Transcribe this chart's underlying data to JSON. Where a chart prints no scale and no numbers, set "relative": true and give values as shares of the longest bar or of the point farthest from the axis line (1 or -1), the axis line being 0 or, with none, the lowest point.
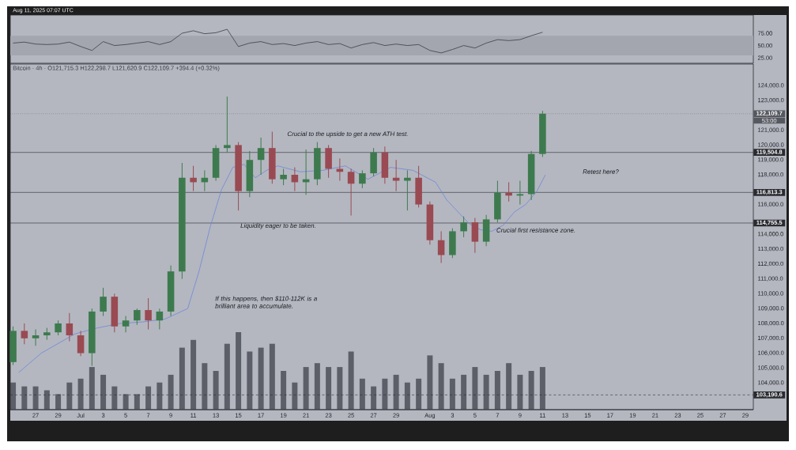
{
  "chart_data": [
    {
      "type": "line",
      "annotations": [
        "Aug 11, 2025 07:07 UTC"
      ],
      "x": [
        "2025-06-25",
        "2025-06-26",
        "2025-06-27",
        "2025-06-28",
        "2025-06-29",
        "2025-06-30",
        "2025-07-01",
        "2025-07-02",
        "2025-07-03",
        "2025-07-04",
        "2025-07-05",
        "2025-07-06",
        "2025-07-07",
        "2025-07-08",
        "2025-07-09",
        "2025-07-10",
        "2025-07-11",
        "2025-07-12",
        "2025-07-13",
        "2025-07-14",
        "2025-07-15",
        "2025-07-16",
        "2025-07-17",
        "2025-07-18",
        "2025-07-19",
        "2025-07-20",
        "2025-07-21",
        "2025-07-22",
        "2025-07-23",
        "2025-07-24",
        "2025-07-25",
        "2025-07-26",
        "2025-07-27",
        "2025-07-28",
        "2025-07-29",
        "2025-07-30",
        "2025-07-31",
        "2025-08-01",
        "2025-08-02",
        "2025-08-03",
        "2025-08-04",
        "2025-08-05",
        "2025-08-06",
        "2025-08-07",
        "2025-08-08",
        "2025-08-09",
        "2025-08-10",
        "2025-08-11"
      ],
      "series": [
        {
          "color": "#3a3d44",
          "values": [
            55,
            57,
            53,
            52,
            53,
            57,
            48,
            40,
            58,
            50,
            52,
            55,
            58,
            52,
            58,
            75,
            80,
            74,
            76,
            83,
            48,
            55,
            58,
            52,
            54,
            50,
            55,
            58,
            52,
            54,
            45,
            52,
            56,
            50,
            53,
            50,
            52,
            40,
            35,
            42,
            50,
            45,
            55,
            62,
            60,
            62,
            70,
            77
          ]
        }
      ],
      "xlim": [
        "2025-06-24T18:00",
        "2025-08-29T17:00"
      ],
      "ylim": [
        14,
        112
      ],
      "yticks": [
        {
          "value": 25,
          "label": "25.00"
        },
        {
          "value": 50,
          "label": "50.00"
        },
        {
          "value": 75,
          "label": "75.00"
        }
      ],
      "bands": [
        {
          "axis": "y",
          "from": 30,
          "to": 70,
          "color": "#a3a6af"
        }
      ],
      "tick_labels": "y"
    },
    {
      "type": "candlestick",
      "title": "Bitcoin · 4h · O121,715.3 H122,298.7 L121,620.9 C122,109.7 +394.4 (+0.32%)",
      "x": [
        "2025-06-25",
        "2025-06-26",
        "2025-06-27",
        "2025-06-28",
        "2025-06-29",
        "2025-06-30",
        "2025-07-01",
        "2025-07-02",
        "2025-07-03",
        "2025-07-04",
        "2025-07-05",
        "2025-07-06",
        "2025-07-07",
        "2025-07-08",
        "2025-07-09",
        "2025-07-10",
        "2025-07-11",
        "2025-07-12",
        "2025-07-13",
        "2025-07-14",
        "2025-07-15",
        "2025-07-16",
        "2025-07-17",
        "2025-07-18",
        "2025-07-19",
        "2025-07-20",
        "2025-07-21",
        "2025-07-22",
        "2025-07-23",
        "2025-07-24",
        "2025-07-25",
        "2025-07-26",
        "2025-07-27",
        "2025-07-28",
        "2025-07-29",
        "2025-07-30",
        "2025-07-31",
        "2025-08-01",
        "2025-08-02",
        "2025-08-03",
        "2025-08-04",
        "2025-08-05",
        "2025-08-06",
        "2025-08-07",
        "2025-08-08",
        "2025-08-09",
        "2025-08-10",
        "2025-08-11"
      ],
      "ohlc": [
        [
          105400,
          107800,
          105200,
          107500
        ],
        [
          107500,
          108000,
          106600,
          107000
        ],
        [
          107000,
          107600,
          106500,
          107200
        ],
        [
          107200,
          107700,
          106900,
          107400
        ],
        [
          107400,
          108200,
          107200,
          108000
        ],
        [
          108000,
          108700,
          106800,
          107200
        ],
        [
          107200,
          107500,
          105800,
          106000
        ],
        [
          106000,
          109000,
          105150,
          108800
        ],
        [
          108800,
          110400,
          108500,
          109800
        ],
        [
          109800,
          110000,
          107400,
          107800
        ],
        [
          107800,
          108500,
          107400,
          108200
        ],
        [
          108200,
          109000,
          107900,
          108900
        ],
        [
          108900,
          109700,
          107600,
          108200
        ],
        [
          108200,
          109000,
          107600,
          108800
        ],
        [
          108800,
          111900,
          108500,
          111500
        ],
        [
          111500,
          118800,
          111000,
          117800
        ],
        [
          117800,
          118600,
          116900,
          117500
        ],
        [
          117500,
          118300,
          116900,
          117800
        ],
        [
          117800,
          120000,
          117600,
          119800
        ],
        [
          119800,
          123260,
          119500,
          120000
        ],
        [
          120000,
          120200,
          115600,
          116900
        ],
        [
          116900,
          119600,
          116500,
          119000
        ],
        [
          119000,
          120500,
          118000,
          119800
        ],
        [
          119800,
          120900,
          117400,
          117700
        ],
        [
          117700,
          118400,
          117300,
          118000
        ],
        [
          118000,
          118500,
          116900,
          117500
        ],
        [
          117500,
          119700,
          116650,
          117700
        ],
        [
          117700,
          120200,
          117300,
          119800
        ],
        [
          119800,
          120000,
          117800,
          118400
        ],
        [
          118400,
          119100,
          117600,
          118200
        ],
        [
          118200,
          118400,
          115260,
          117400
        ],
        [
          117400,
          118300,
          117100,
          118100
        ],
        [
          118100,
          119800,
          117900,
          119500
        ],
        [
          119500,
          119900,
          117400,
          117800
        ],
        [
          117800,
          119000,
          116900,
          117600
        ],
        [
          117600,
          118300,
          115600,
          117800
        ],
        [
          117800,
          118600,
          115800,
          116000
        ],
        [
          116000,
          116200,
          113300,
          113600
        ],
        [
          113600,
          114200,
          112070,
          112600
        ],
        [
          112600,
          114400,
          112400,
          114200
        ],
        [
          114200,
          115200,
          113800,
          114800
        ],
        [
          114800,
          115100,
          112750,
          113500
        ],
        [
          113500,
          115300,
          113200,
          115000
        ],
        [
          115000,
          117600,
          114800,
          116800
        ],
        [
          116800,
          117500,
          116200,
          116600
        ],
        [
          116600,
          117600,
          116000,
          116700
        ],
        [
          116700,
          119600,
          116300,
          119400
        ],
        [
          119400,
          122300,
          119200,
          122109.7
        ]
      ],
      "series": [
        {
          "type": "line",
          "color": "#6f86d8",
          "x": [
            "2025-06-25T12:00",
            "2025-06-27T12:00",
            "2025-06-30T12:00",
            "2025-07-02T12:00",
            "2025-07-04T12:00",
            "2025-07-06T12:00",
            "2025-07-08T12:00",
            "2025-07-10T12:00",
            "2025-07-11T12:00",
            "2025-07-12T12:00",
            "2025-07-13T12:00",
            "2025-07-14T12:00",
            "2025-07-15T12:00",
            "2025-07-16T12:00",
            "2025-07-17T12:00",
            "2025-07-18T12:00",
            "2025-07-20T12:00",
            "2025-07-22T12:00",
            "2025-07-24T12:00",
            "2025-07-26T12:00",
            "2025-07-28T12:00",
            "2025-07-30T12:00",
            "2025-08-01T12:00",
            "2025-08-02T12:00",
            "2025-08-03T12:00",
            "2025-08-04T12:00",
            "2025-08-05T12:00",
            "2025-08-06T12:00",
            "2025-08-07T12:00",
            "2025-08-08T12:00",
            "2025-08-09T12:00",
            "2025-08-10T12:00",
            "2025-08-11T06:00"
          ],
          "values": [
            104700,
            106000,
            107300,
            107700,
            108000,
            108100,
            108300,
            109000,
            111500,
            114500,
            117000,
            118500,
            118700,
            117800,
            118300,
            118600,
            118200,
            118300,
            118600,
            117700,
            118500,
            118300,
            117500,
            116300,
            115500,
            114700,
            114300,
            114200,
            114600,
            115500,
            116000,
            116900,
            118000
          ]
        }
      ],
      "xlim": [
        "2025-06-24T18:00",
        "2025-08-29T17:00"
      ],
      "ylim": [
        102200,
        125450
      ],
      "xticks": [
        {
          "value": "2025-06-27",
          "label": "27"
        },
        {
          "value": "2025-06-29",
          "label": "29"
        },
        {
          "value": "2025-07-01",
          "label": "Jul"
        },
        {
          "value": "2025-07-03",
          "label": "3"
        },
        {
          "value": "2025-07-05",
          "label": "5"
        },
        {
          "value": "2025-07-07",
          "label": "7"
        },
        {
          "value": "2025-07-09",
          "label": "9"
        },
        {
          "value": "2025-07-11",
          "label": "11"
        },
        {
          "value": "2025-07-13",
          "label": "13"
        },
        {
          "value": "2025-07-15",
          "label": "15"
        },
        {
          "value": "2025-07-17",
          "label": "17"
        },
        {
          "value": "2025-07-19",
          "label": "19"
        },
        {
          "value": "2025-07-21",
          "label": "21"
        },
        {
          "value": "2025-07-23",
          "label": "23"
        },
        {
          "value": "2025-07-25",
          "label": "25"
        },
        {
          "value": "2025-07-27",
          "label": "27"
        },
        {
          "value": "2025-07-29",
          "label": "29"
        },
        {
          "value": "2025-08-01",
          "label": "Aug"
        },
        {
          "value": "2025-08-03",
          "label": "3"
        },
        {
          "value": "2025-08-05",
          "label": "5"
        },
        {
          "value": "2025-08-07",
          "label": "7"
        },
        {
          "value": "2025-08-09",
          "label": "9"
        },
        {
          "value": "2025-08-11",
          "label": "11"
        },
        {
          "value": "2025-08-13",
          "label": "13"
        },
        {
          "value": "2025-08-15",
          "label": "15"
        },
        {
          "value": "2025-08-17",
          "label": "17"
        },
        {
          "value": "2025-08-19",
          "label": "19"
        },
        {
          "value": "2025-08-21",
          "label": "21"
        },
        {
          "value": "2025-08-23",
          "label": "23"
        },
        {
          "value": "2025-08-25",
          "label": "25"
        },
        {
          "value": "2025-08-27",
          "label": "27"
        },
        {
          "value": "2025-08-29",
          "label": "29"
        }
      ],
      "yticks": [
        {
          "value": 104000,
          "label": "104,000.0"
        },
        {
          "value": 105000,
          "label": "105,000.0"
        },
        {
          "value": 106000,
          "label": "106,000.0"
        },
        {
          "value": 107000,
          "label": "107,000.0"
        },
        {
          "value": 108000,
          "label": "108,000.0"
        },
        {
          "value": 109000,
          "label": "109,000.0"
        },
        {
          "value": 110000,
          "label": "110,000.0"
        },
        {
          "value": 111000,
          "label": "111,000.0"
        },
        {
          "value": 112000,
          "label": "112,000.0"
        },
        {
          "value": 113000,
          "label": "113,000.0"
        },
        {
          "value": 114000,
          "label": "114,000.0"
        },
        {
          "value": 116000,
          "label": "116,000.0"
        },
        {
          "value": 118000,
          "label": "118,000.0"
        },
        {
          "value": 119000,
          "label": "119,000.0"
        },
        {
          "value": 120000,
          "label": "120,000.0"
        },
        {
          "value": 121000,
          "label": "121,000.0"
        },
        {
          "value": 123000,
          "label": "123,000.0"
        },
        {
          "value": 124000,
          "label": "124,000.0"
        }
      ],
      "ref_lines": [
        {
          "axis": "y",
          "value": 122109.7,
          "label": "122,109.7",
          "color": "#55585f",
          "line_style": "dotted"
        },
        {
          "axis": "y",
          "value": 119504.8,
          "label": "119,504.8",
          "color": "#2a2b30"
        },
        {
          "axis": "y",
          "value": 116813.3,
          "label": "116,813.3",
          "color": "#2a2b30"
        },
        {
          "axis": "y",
          "value": 114755.5,
          "label": "114,755.5",
          "color": "#2a2b30"
        },
        {
          "axis": "y",
          "value": 103190.6,
          "label": "103,190.6",
          "color": "#2a2b30",
          "line_style": "dashed"
        }
      ],
      "annotations": [
        "53:00",
        "Crucial to the upside to get a new ATH test.",
        "Liquidity eager to be taken.",
        "Crucial first resistance zone.",
        "Retest here?",
        "If this happens, then $110-112K is a brilliant area to accumulate."
      ]
    },
    {
      "type": "bar",
      "relative": true,
      "color": "#5c5f68",
      "tick_labels": false,
      "xlim": [
        "2025-06-24T18:00",
        "2025-08-29T17:00"
      ],
      "x": [
        "2025-06-25",
        "2025-06-26",
        "2025-06-27",
        "2025-06-28",
        "2025-06-29",
        "2025-06-30",
        "2025-07-01",
        "2025-07-02",
        "2025-07-03",
        "2025-07-04",
        "2025-07-05",
        "2025-07-06",
        "2025-07-07",
        "2025-07-08",
        "2025-07-09",
        "2025-07-10",
        "2025-07-11",
        "2025-07-12",
        "2025-07-13",
        "2025-07-14",
        "2025-07-15",
        "2025-07-16",
        "2025-07-17",
        "2025-07-18",
        "2025-07-19",
        "2025-07-20",
        "2025-07-21",
        "2025-07-22",
        "2025-07-23",
        "2025-07-24",
        "2025-07-25",
        "2025-07-26",
        "2025-07-27",
        "2025-07-28",
        "2025-07-29",
        "2025-07-30",
        "2025-07-31",
        "2025-08-01",
        "2025-08-02",
        "2025-08-03",
        "2025-08-04",
        "2025-08-05",
        "2025-08-06",
        "2025-08-07",
        "2025-08-08",
        "2025-08-09",
        "2025-08-10",
        "2025-08-11"
      ],
      "values": [
        0.35,
        0.3,
        0.3,
        0.25,
        0.2,
        0.35,
        0.4,
        0.55,
        0.45,
        0.3,
        0.2,
        0.2,
        0.3,
        0.35,
        0.45,
        0.8,
        0.9,
        0.6,
        0.5,
        0.85,
        1.0,
        0.75,
        0.8,
        0.85,
        0.5,
        0.35,
        0.55,
        0.6,
        0.55,
        0.55,
        0.75,
        0.4,
        0.3,
        0.4,
        0.45,
        0.35,
        0.4,
        0.7,
        0.6,
        0.4,
        0.45,
        0.55,
        0.45,
        0.5,
        0.6,
        0.45,
        0.5,
        0.55
      ]
    }
  ]
}
